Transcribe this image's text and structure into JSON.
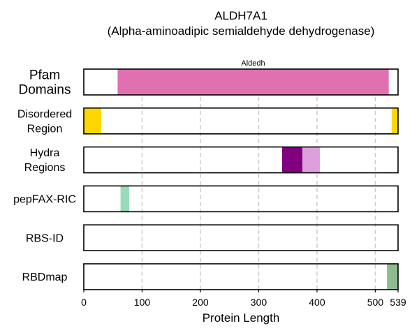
{
  "chart_data": {
    "type": "bar",
    "title": "ALDH7A1",
    "subtitle": "(Alpha-aminoadipic semialdehyde dehydrogenase)",
    "xlabel": "Protein Length",
    "xlim": [
      0,
      539
    ],
    "xticks": [
      0,
      100,
      200,
      300,
      400,
      500,
      539
    ],
    "grid_x": [
      100,
      200,
      300,
      400,
      500
    ],
    "tracks": [
      {
        "label": "Pfam\nDomains",
        "emphasis": true,
        "segments": [
          {
            "start": 58,
            "end": 523,
            "color": "#e070b0",
            "label": "Aldedh"
          }
        ]
      },
      {
        "label": "Disordered\nRegion",
        "segments": [
          {
            "start": 0,
            "end": 30,
            "color": "#ffd700"
          },
          {
            "start": 528,
            "end": 539,
            "color": "#ffd700"
          }
        ]
      },
      {
        "label": "Hydra\nRegions",
        "segments": [
          {
            "start": 340,
            "end": 375,
            "color": "#800080"
          },
          {
            "start": 375,
            "end": 405,
            "color": "#dda0dd"
          }
        ]
      },
      {
        "label": "pepFAX-RIC",
        "segments": [
          {
            "start": 63,
            "end": 78,
            "color": "#98dbb8"
          }
        ]
      },
      {
        "label": "RBS-ID",
        "segments": []
      },
      {
        "label": "RBDmap",
        "segments": [
          {
            "start": 520,
            "end": 539,
            "color": "#8fbc8f"
          }
        ]
      }
    ]
  }
}
